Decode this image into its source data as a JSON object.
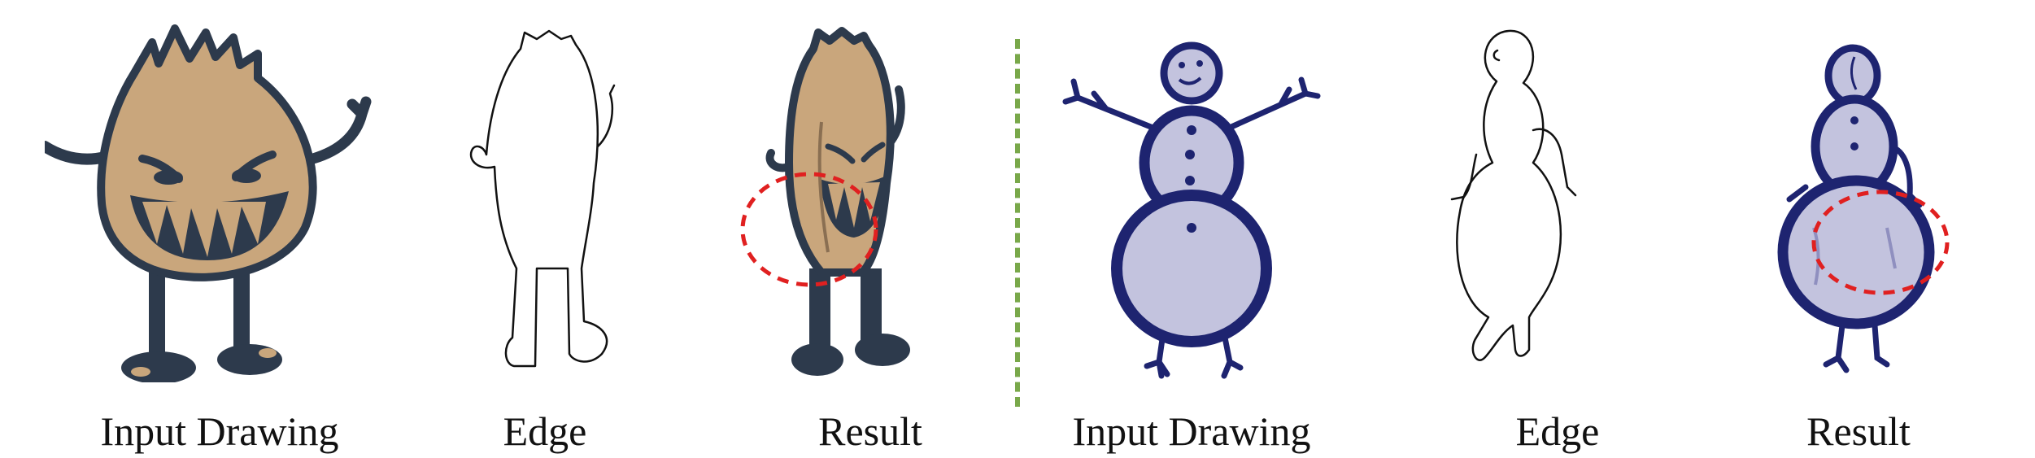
{
  "captions": {
    "monster_input": "Input Drawing",
    "monster_edge": "Edge",
    "monster_result": "Result",
    "snowman_input": "Input Drawing",
    "snowman_edge": "Edge",
    "snowman_result": "Result"
  },
  "colors": {
    "monster_fill": "#c9a67c",
    "monster_ink": "#2d3a4c",
    "snowman_fill": "#c3c3de",
    "snowman_ink": "#1e2470",
    "edge_line": "#111111",
    "highlight_circle": "#e02020",
    "divider": "#79a84a"
  }
}
